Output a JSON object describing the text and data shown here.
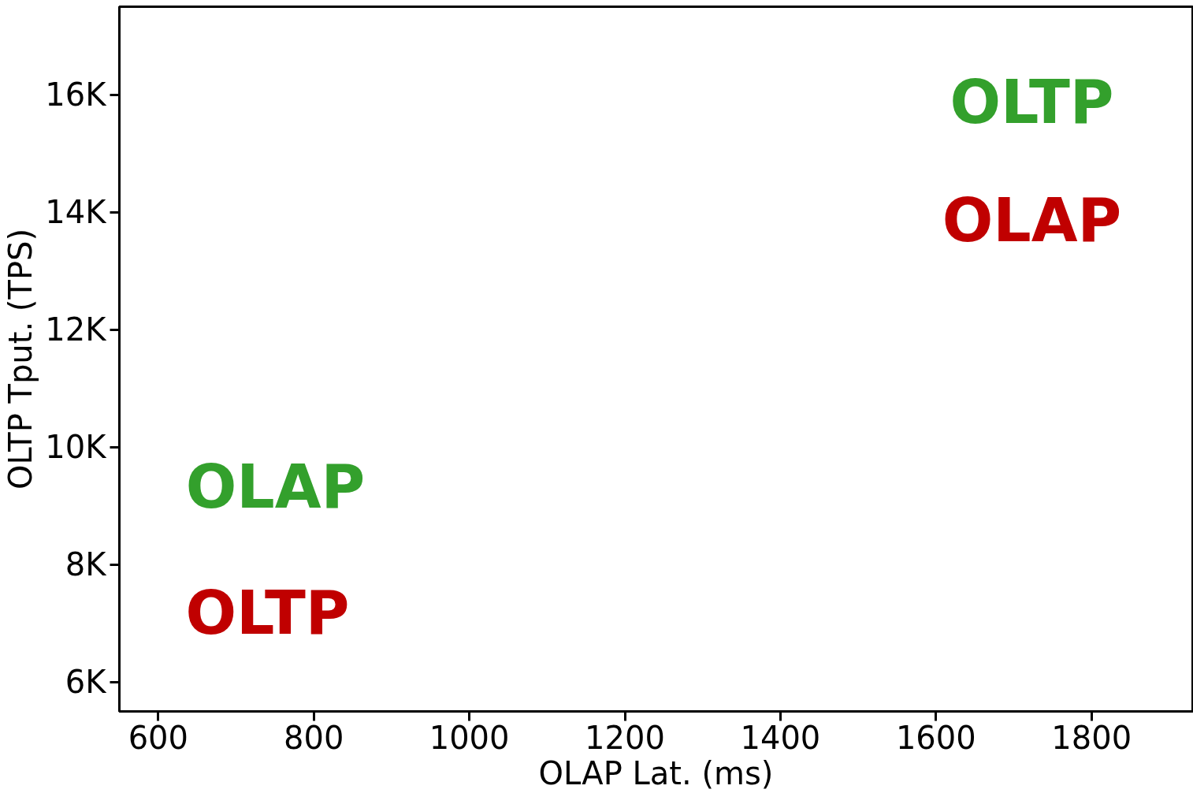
{
  "chart_data": {
    "type": "scatter",
    "xlabel": "OLAP Lat. (ms)",
    "ylabel": "OLTP Tput. (TPS)",
    "xlim": [
      550,
      1930
    ],
    "xticks": [
      600,
      800,
      1000,
      1200,
      1400,
      1600,
      1800
    ],
    "ylim": [
      5500,
      17500
    ],
    "yticks": [
      {
        "value": 6000,
        "label": "6K"
      },
      {
        "value": 8000,
        "label": "8K"
      },
      {
        "value": 10000,
        "label": "10K"
      },
      {
        "value": 12000,
        "label": "12K"
      },
      {
        "value": 14000,
        "label": "14K"
      },
      {
        "value": 16000,
        "label": "16K"
      }
    ],
    "annotations": [
      "OLTP",
      "OLAP",
      "OLAP",
      "OLTP"
    ],
    "grid": false
  }
}
